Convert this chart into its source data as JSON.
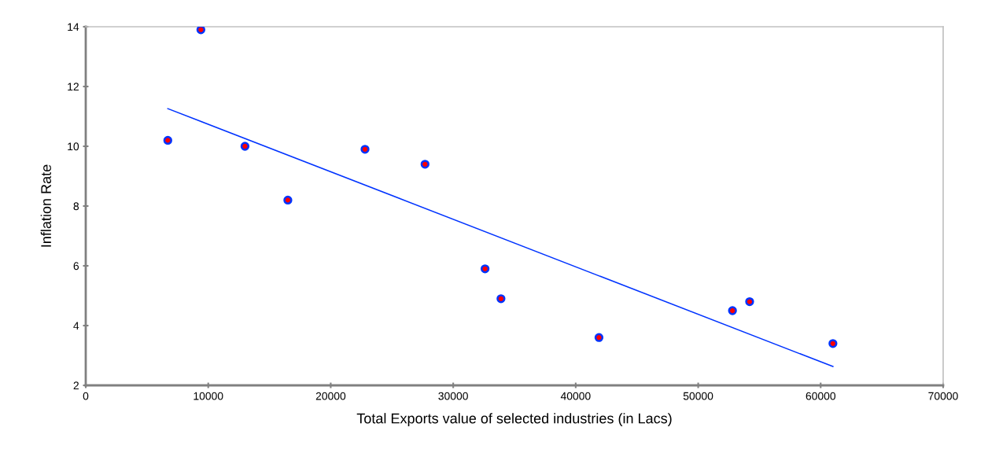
{
  "chart_data": {
    "type": "scatter",
    "xlabel": "Total Exports value of selected industries (in Lacs)",
    "ylabel": "Inflation Rate",
    "xlim": [
      0,
      70000
    ],
    "xticks": [
      0,
      10000,
      20000,
      30000,
      40000,
      50000,
      60000,
      70000
    ],
    "ylim": [
      2,
      14
    ],
    "yticks": [
      2,
      4,
      6,
      8,
      10,
      12,
      14
    ],
    "grid": false,
    "series": [
      {
        "color": "#ff0000",
        "marker": "circle",
        "x": [
          6700,
          9400,
          13000,
          16500,
          22800,
          27700,
          32600,
          33900,
          41900,
          52800,
          54200,
          61000
        ],
        "values": [
          10.2,
          13.9,
          10.0,
          8.2,
          9.9,
          9.4,
          5.9,
          4.9,
          3.6,
          4.5,
          4.8,
          3.4
        ]
      },
      {
        "type": "line",
        "color": "#0033ff",
        "line_style": "solid",
        "marker": "none",
        "x": [
          6700,
          61000
        ],
        "values": [
          11.26,
          2.63
        ]
      }
    ]
  }
}
